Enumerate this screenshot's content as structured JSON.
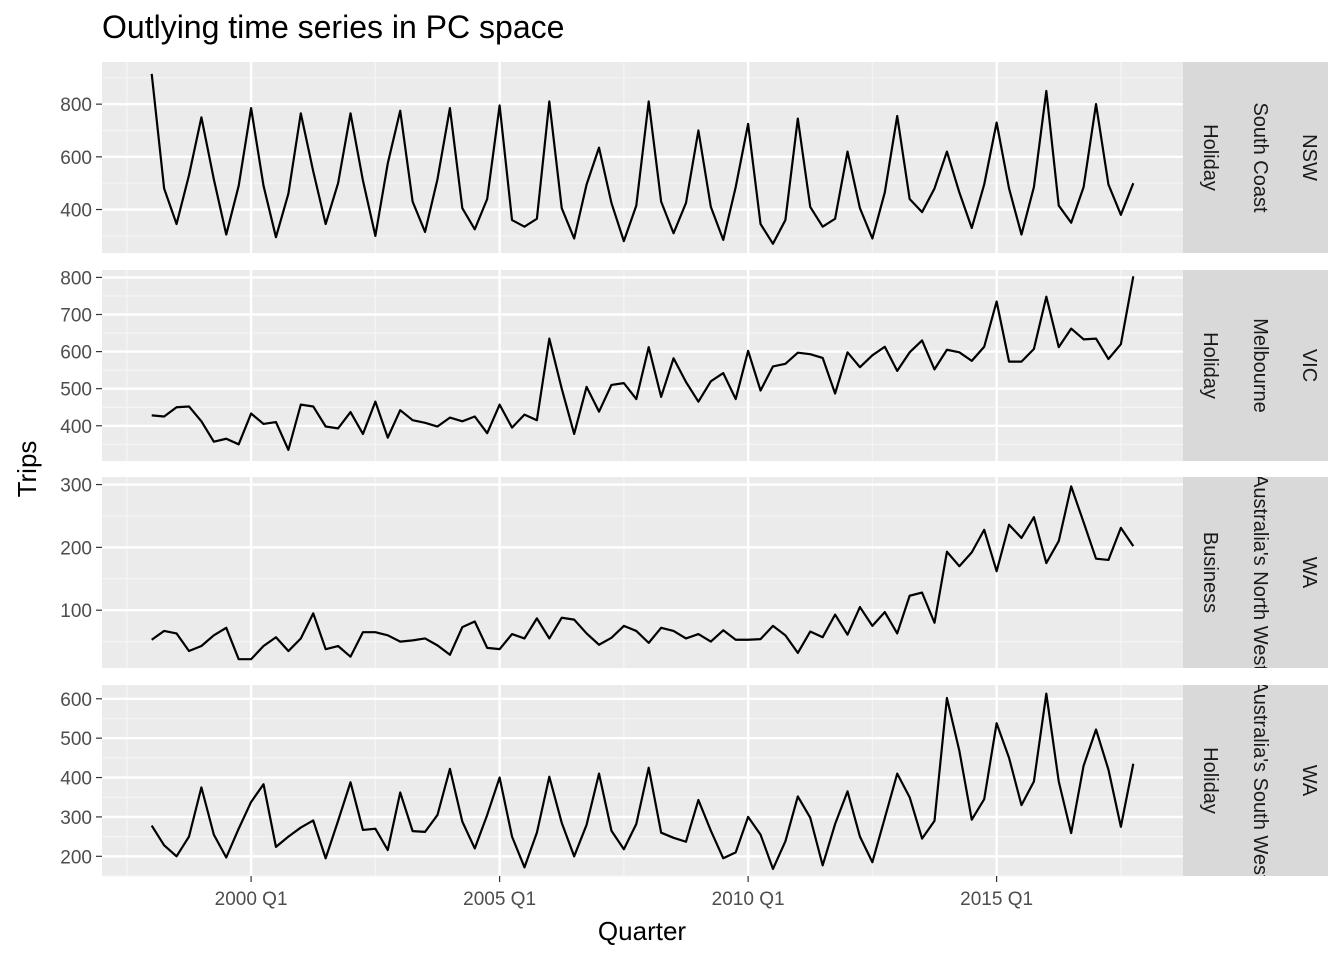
{
  "chart_data": {
    "type": "line",
    "title": "Outlying time series in PC space",
    "xlabel": "Quarter",
    "ylabel": "Trips",
    "x_start": "1998 Q1",
    "x_end": "2017 Q4",
    "x_ticks": [
      {
        "label": "2000 Q1",
        "value": 2000.0
      },
      {
        "label": "2005 Q1",
        "value": 2005.0
      },
      {
        "label": "2010 Q1",
        "value": 2010.0
      },
      {
        "label": "2015 Q1",
        "value": 2015.0
      }
    ],
    "xlim": [
      1997.0,
      2018.75
    ],
    "grid": true,
    "facets": [
      {
        "strips": [
          "NSW",
          "South Coast",
          "Holiday"
        ],
        "ylim": [
          235,
          960
        ],
        "y_ticks": [
          400,
          600,
          800
        ],
        "values": [
          915,
          480,
          345,
          530,
          750,
          515,
          305,
          490,
          785,
          490,
          295,
          460,
          765,
          545,
          345,
          500,
          765,
          510,
          300,
          575,
          775,
          430,
          315,
          515,
          785,
          405,
          325,
          440,
          795,
          360,
          335,
          365,
          810,
          405,
          290,
          495,
          635,
          425,
          280,
          415,
          810,
          430,
          310,
          425,
          700,
          410,
          285,
          485,
          725,
          345,
          270,
          360,
          745,
          410,
          335,
          365,
          620,
          405,
          290,
          465,
          755,
          440,
          390,
          480,
          620,
          465,
          330,
          495,
          730,
          480,
          305,
          485,
          850,
          415,
          350,
          485,
          800,
          495,
          380,
          500
        ]
      },
      {
        "strips": [
          "VIC",
          "Melbourne",
          "Holiday"
        ],
        "ylim": [
          305,
          820
        ],
        "y_ticks": [
          400,
          500,
          600,
          700,
          800
        ],
        "values": [
          428,
          425,
          450,
          452,
          412,
          357,
          365,
          350,
          433,
          405,
          410,
          335,
          457,
          452,
          398,
          393,
          437,
          378,
          465,
          368,
          442,
          415,
          408,
          398,
          422,
          412,
          425,
          380,
          457,
          395,
          430,
          415,
          635,
          500,
          378,
          505,
          438,
          510,
          515,
          472,
          612,
          478,
          582,
          518,
          465,
          520,
          542,
          472,
          602,
          495,
          560,
          567,
          597,
          593,
          583,
          487,
          598,
          558,
          590,
          613,
          548,
          598,
          630,
          552,
          605,
          598,
          575,
          613,
          735,
          573,
          573,
          607,
          748,
          612,
          662,
          633,
          635,
          580,
          620,
          803
        ]
      },
      {
        "strips": [
          "WA",
          "Australia's North West",
          "Business"
        ],
        "ylim": [
          8,
          312
        ],
        "y_ticks": [
          100,
          200,
          300
        ],
        "values": [
          53,
          67,
          63,
          35,
          43,
          60,
          72,
          22,
          22,
          43,
          57,
          35,
          55,
          95,
          38,
          43,
          26,
          65,
          65,
          60,
          50,
          52,
          55,
          44,
          29,
          73,
          82,
          40,
          38,
          62,
          55,
          87,
          55,
          88,
          85,
          63,
          45,
          56,
          75,
          67,
          48,
          72,
          67,
          55,
          62,
          50,
          68,
          53,
          53,
          54,
          75,
          60,
          32,
          66,
          57,
          93,
          61,
          105,
          75,
          97,
          63,
          123,
          128,
          80,
          193,
          170,
          192,
          228,
          162,
          236,
          215,
          248,
          175,
          210,
          297,
          240,
          182,
          180,
          231,
          202
        ]
      },
      {
        "strips": [
          "WA",
          "Australia's South West",
          "Holiday"
        ],
        "ylim": [
          150,
          635
        ],
        "y_ticks": [
          200,
          300,
          400,
          500,
          600
        ],
        "values": [
          278,
          228,
          200,
          250,
          375,
          255,
          197,
          270,
          338,
          383,
          224,
          250,
          273,
          291,
          195,
          290,
          388,
          267,
          270,
          216,
          362,
          264,
          262,
          305,
          422,
          288,
          220,
          305,
          400,
          250,
          172,
          260,
          402,
          285,
          200,
          280,
          410,
          265,
          218,
          282,
          425,
          260,
          247,
          237,
          343,
          265,
          195,
          210,
          300,
          255,
          168,
          238,
          352,
          298,
          177,
          282,
          365,
          250,
          185,
          297,
          410,
          350,
          245,
          290,
          602,
          468,
          293,
          345,
          538,
          450,
          330,
          390,
          613,
          390,
          259,
          430,
          522,
          420,
          275,
          435
        ]
      }
    ]
  }
}
